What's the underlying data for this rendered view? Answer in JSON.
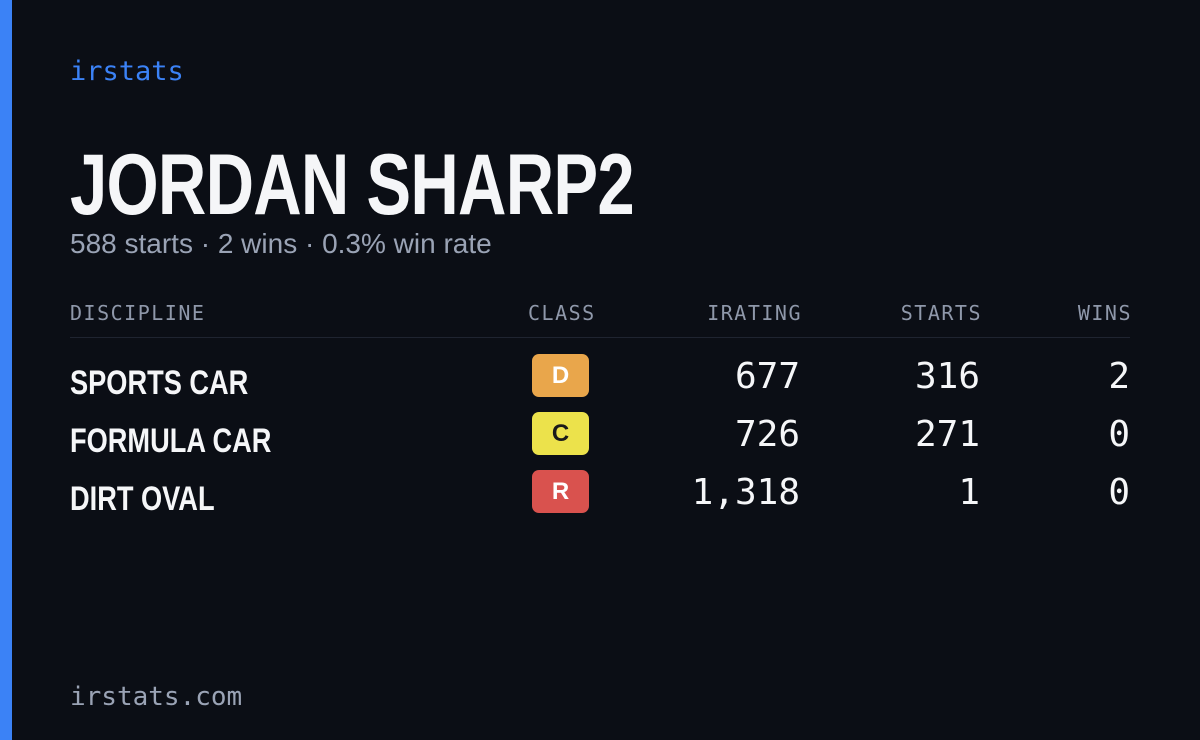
{
  "brand": "irstats",
  "profile": {
    "name": "JORDAN SHARP2",
    "summary": "588 starts · 2 wins · 0.3% win rate"
  },
  "table": {
    "headers": [
      "DISCIPLINE",
      "CLASS",
      "IRATING",
      "STARTS",
      "WINS"
    ],
    "rows": [
      [
        "SPORTS CAR",
        "D",
        "677",
        "316",
        "2"
      ],
      [
        "FORMULA CAR",
        "C",
        "726",
        "271",
        "0"
      ],
      [
        "DIRT OVAL",
        "R",
        "1,318",
        "1",
        "0"
      ]
    ]
  },
  "footer": "irstats.com"
}
